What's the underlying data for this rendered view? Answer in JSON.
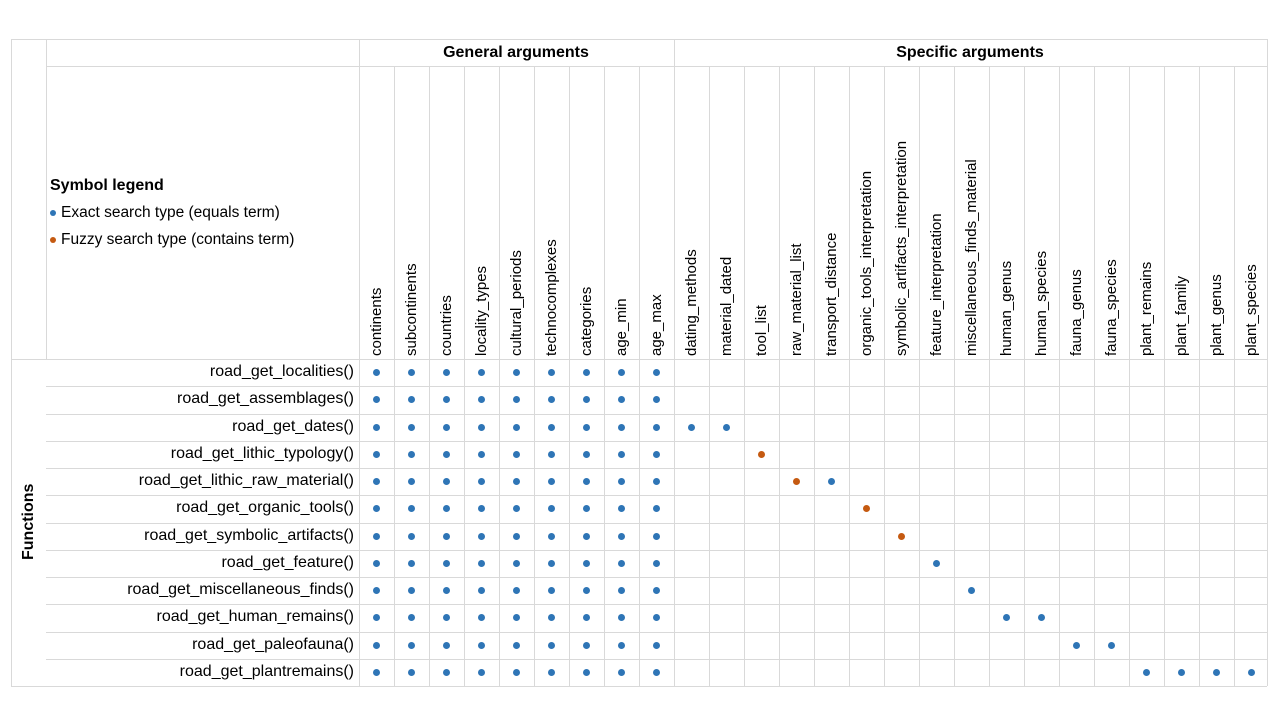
{
  "groups": {
    "general": "General arguments",
    "specific": "Specific arguments"
  },
  "legend": {
    "title": "Symbol legend",
    "items": [
      {
        "label": "Exact search type (equals term)",
        "type": "exact"
      },
      {
        "label": "Fuzzy search type (contains term)",
        "type": "fuzzy"
      }
    ]
  },
  "colors": {
    "exact": "#2e75b6",
    "fuzzy": "#c55a11",
    "grid": "#d9d9d9"
  },
  "row_header": "Functions",
  "columns": [
    "continents",
    "subcontinents",
    "countries",
    "locality_types",
    "cultural_periods",
    "technocomplexes",
    "categories",
    "age_min",
    "age_max",
    "dating_methods",
    "material_dated",
    "tool_list",
    "raw_material_list",
    "transport_distance",
    "organic_tools_interpretation",
    "symbolic_artifacts_interpretation",
    "feature_interpretation",
    "miscellaneous_finds_material",
    "human_genus",
    "human_species",
    "fauna_genus",
    "fauna_species",
    "plant_remains",
    "plant_family",
    "plant_genus",
    "plant_species"
  ],
  "general_count": 9,
  "rows": [
    {
      "name": "road_get_localities()",
      "specific": {}
    },
    {
      "name": "road_get_assemblages()",
      "specific": {}
    },
    {
      "name": "road_get_dates()",
      "specific": {
        "dating_methods": "exact",
        "material_dated": "exact"
      }
    },
    {
      "name": "road_get_lithic_typology()",
      "specific": {
        "tool_list": "fuzzy"
      }
    },
    {
      "name": "road_get_lithic_raw_material()",
      "specific": {
        "raw_material_list": "fuzzy",
        "transport_distance": "exact"
      }
    },
    {
      "name": "road_get_organic_tools()",
      "specific": {
        "organic_tools_interpretation": "fuzzy"
      }
    },
    {
      "name": "road_get_symbolic_artifacts()",
      "specific": {
        "symbolic_artifacts_interpretation": "fuzzy"
      }
    },
    {
      "name": "road_get_feature()",
      "specific": {
        "feature_interpretation": "exact"
      }
    },
    {
      "name": "road_get_miscellaneous_finds()",
      "specific": {
        "miscellaneous_finds_material": "exact"
      }
    },
    {
      "name": "road_get_human_remains()",
      "specific": {
        "human_genus": "exact",
        "human_species": "exact"
      }
    },
    {
      "name": "road_get_paleofauna()",
      "specific": {
        "fauna_genus": "exact",
        "fauna_species": "exact"
      }
    },
    {
      "name": "road_get_plantremains()",
      "specific": {
        "plant_remains": "exact",
        "plant_family": "exact",
        "plant_genus": "exact",
        "plant_species": "exact"
      }
    }
  ]
}
